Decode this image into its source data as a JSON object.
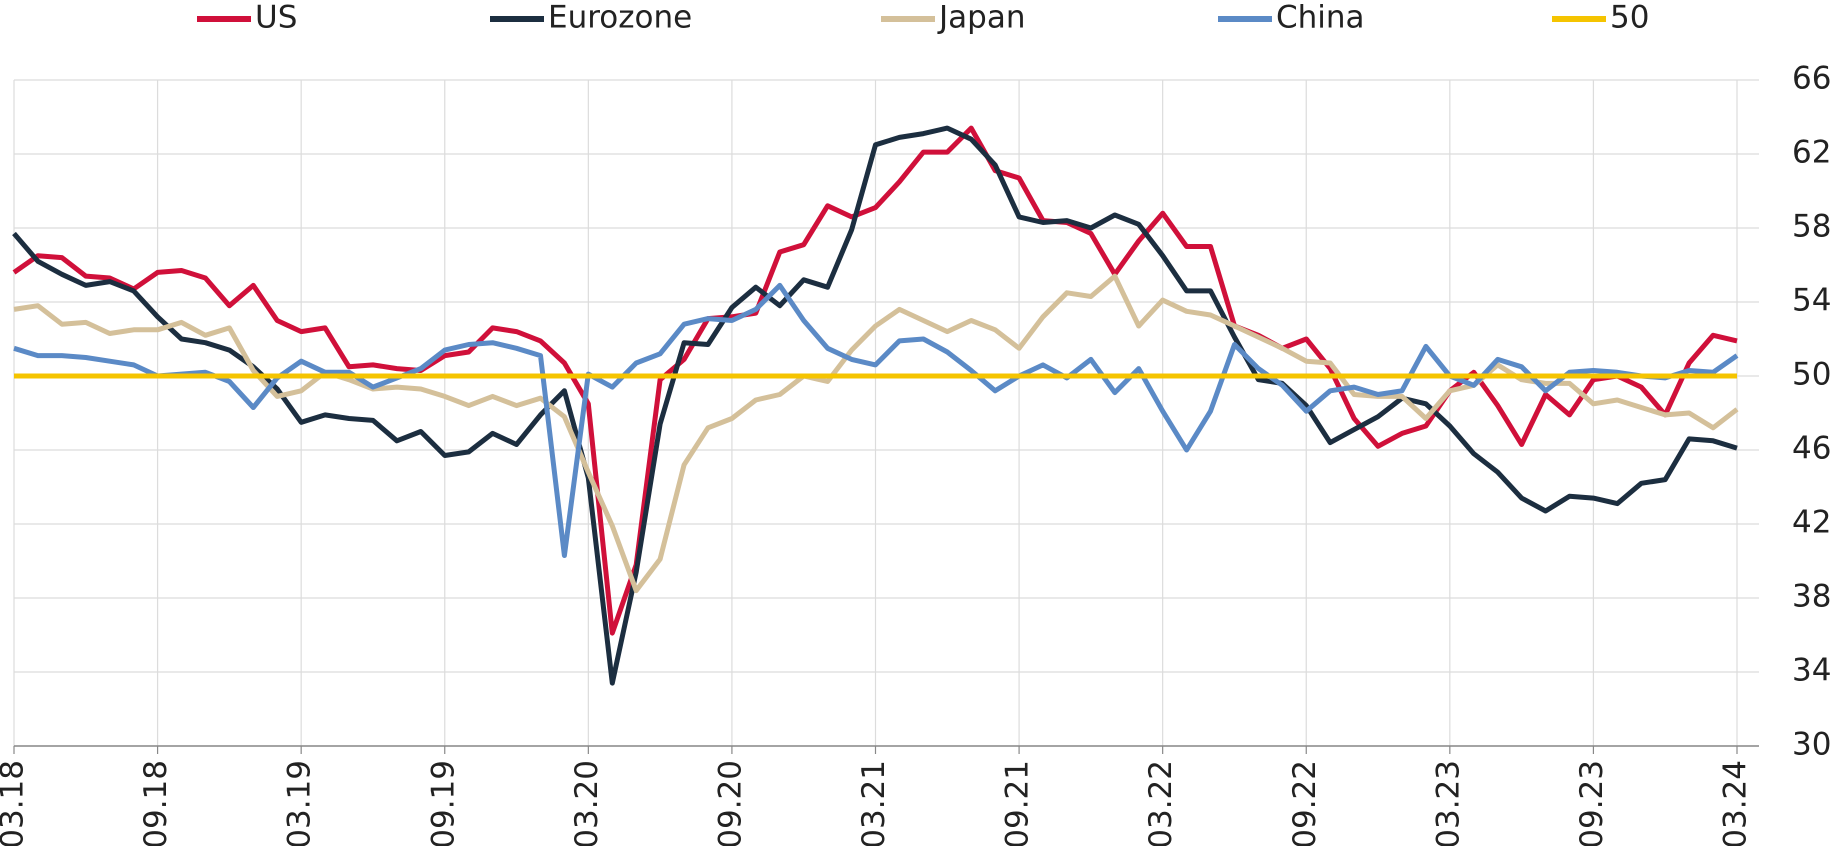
{
  "chart_data": {
    "type": "line",
    "categories": [
      "03.18",
      null,
      null,
      null,
      null,
      null,
      "09.18",
      null,
      null,
      null,
      null,
      null,
      "03.19",
      null,
      null,
      null,
      null,
      null,
      "09.19",
      null,
      null,
      null,
      null,
      null,
      "03.20",
      null,
      null,
      null,
      null,
      null,
      "09.20",
      null,
      null,
      null,
      null,
      null,
      "03.21",
      null,
      null,
      null,
      null,
      null,
      "09.21",
      null,
      null,
      null,
      null,
      null,
      "03.22",
      null,
      null,
      null,
      null,
      null,
      "09.22",
      null,
      null,
      null,
      null,
      null,
      "03.23",
      null,
      null,
      null,
      null,
      null,
      "09.23",
      null,
      null,
      null,
      null,
      null,
      "03.24"
    ],
    "series": [
      {
        "name": "US",
        "color": "#d0103a",
        "values": [
          55.6,
          56.5,
          56.4,
          55.4,
          55.3,
          54.7,
          55.6,
          55.7,
          55.3,
          53.8,
          54.9,
          53.0,
          52.4,
          52.6,
          50.5,
          50.6,
          50.4,
          50.3,
          51.1,
          51.3,
          52.6,
          52.4,
          51.9,
          50.7,
          48.5,
          36.1,
          39.8,
          49.8,
          50.9,
          53.1,
          53.2,
          53.4,
          56.7,
          57.1,
          59.2,
          58.6,
          59.1,
          60.5,
          62.1,
          62.1,
          63.4,
          61.1,
          60.7,
          58.4,
          58.3,
          57.7,
          55.5,
          57.3,
          58.8,
          57.0,
          57.0,
          52.7,
          52.2,
          51.5,
          52.0,
          50.4,
          47.7,
          46.2,
          46.9,
          47.3,
          49.2,
          50.2,
          48.4,
          46.3,
          49.0,
          47.9,
          49.8,
          50.0,
          49.4,
          47.9,
          50.7,
          52.2,
          51.9
        ]
      },
      {
        "name": "Eurozone",
        "color": "#1c2e40",
        "values": [
          57.7,
          56.2,
          55.5,
          54.9,
          55.1,
          54.6,
          53.2,
          52.0,
          51.8,
          51.4,
          50.5,
          49.3,
          47.5,
          47.9,
          47.7,
          47.6,
          46.5,
          47.0,
          45.7,
          45.9,
          46.9,
          46.3,
          47.9,
          49.2,
          44.5,
          33.4,
          39.4,
          47.4,
          51.8,
          51.7,
          53.7,
          54.8,
          53.8,
          55.2,
          54.8,
          57.9,
          62.5,
          62.9,
          63.1,
          63.4,
          62.8,
          61.4,
          58.6,
          58.3,
          58.4,
          58.0,
          58.7,
          58.2,
          56.5,
          54.6,
          54.6,
          52.1,
          49.8,
          49.6,
          48.4,
          46.4,
          47.1,
          47.8,
          48.8,
          48.5,
          47.3,
          45.8,
          44.8,
          43.4,
          42.7,
          43.5,
          43.4,
          43.1,
          44.2,
          44.4,
          46.6,
          46.5,
          46.1
        ]
      },
      {
        "name": "Japan",
        "color": "#d4c09a",
        "values": [
          53.6,
          53.8,
          52.8,
          52.9,
          52.3,
          52.5,
          52.5,
          52.9,
          52.2,
          52.6,
          50.3,
          48.9,
          49.2,
          50.2,
          49.8,
          49.3,
          49.4,
          49.3,
          48.9,
          48.4,
          48.9,
          48.4,
          48.8,
          47.8,
          44.8,
          41.9,
          38.4,
          40.1,
          45.2,
          47.2,
          47.7,
          48.7,
          49.0,
          50.0,
          49.7,
          51.4,
          52.7,
          53.6,
          53.0,
          52.4,
          53.0,
          52.5,
          51.5,
          53.2,
          54.5,
          54.3,
          55.4,
          52.7,
          54.1,
          53.5,
          53.3,
          52.7,
          52.1,
          51.5,
          50.8,
          50.7,
          49.0,
          48.9,
          48.9,
          47.7,
          49.2,
          49.5,
          50.6,
          49.8,
          49.6,
          49.6,
          48.5,
          48.7,
          48.3,
          47.9,
          48.0,
          47.2,
          48.2
        ]
      },
      {
        "name": "China",
        "color": "#5b8ac6",
        "values": [
          51.5,
          51.1,
          51.1,
          51.0,
          50.8,
          50.6,
          50.0,
          50.1,
          50.2,
          49.7,
          48.3,
          49.9,
          50.8,
          50.2,
          50.2,
          49.4,
          49.9,
          50.4,
          51.4,
          51.7,
          51.8,
          51.5,
          51.1,
          40.3,
          50.1,
          49.4,
          50.7,
          51.2,
          52.8,
          53.1,
          53.0,
          53.6,
          54.9,
          53.0,
          51.5,
          50.9,
          50.6,
          51.9,
          52.0,
          51.3,
          50.3,
          49.2,
          50.0,
          50.6,
          49.9,
          50.9,
          49.1,
          50.4,
          48.1,
          46.0,
          48.1,
          51.7,
          50.4,
          49.5,
          48.1,
          49.2,
          49.4,
          49.0,
          49.2,
          51.6,
          50.0,
          49.5,
          50.9,
          50.5,
          49.2,
          50.2,
          50.3,
          50.2,
          50.0,
          49.9,
          50.3,
          50.2,
          51.1
        ]
      }
    ],
    "reference_line": {
      "name": "50",
      "value": 50,
      "color": "#f5c400"
    },
    "ylim": [
      30,
      66
    ],
    "yticks": [
      30,
      34,
      38,
      42,
      46,
      50,
      54,
      58,
      62,
      66
    ],
    "grid": true,
    "legend": "top"
  }
}
